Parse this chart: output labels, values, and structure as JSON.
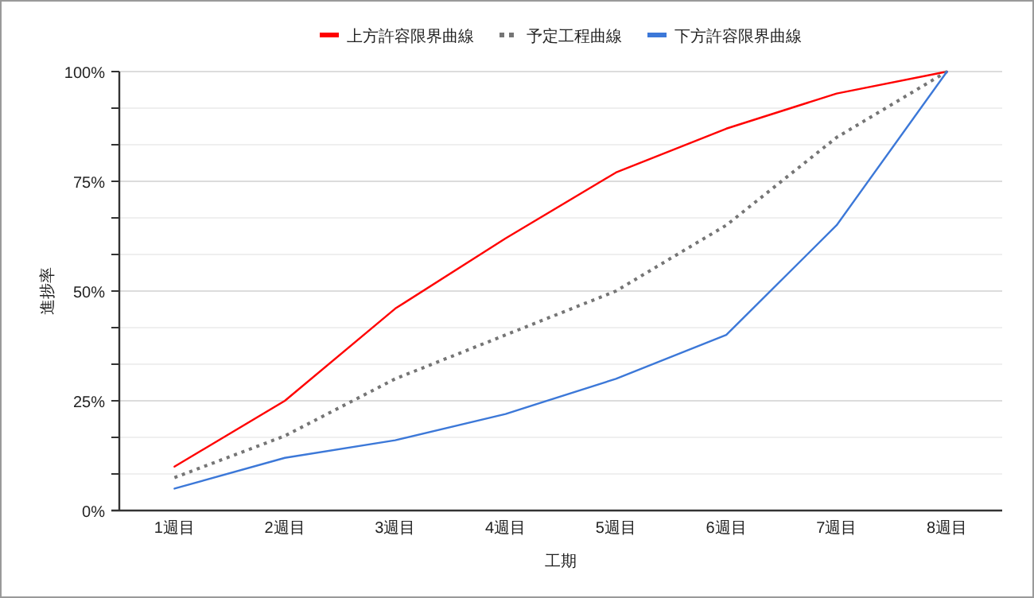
{
  "chart_data": {
    "type": "line",
    "categories": [
      "1週目",
      "2週目",
      "3週目",
      "4週目",
      "5週目",
      "6週目",
      "7週目",
      "8週目"
    ],
    "series": [
      {
        "name": "上方許容限界曲線",
        "color": "#ff0000",
        "line_style": "solid",
        "values": [
          10,
          25,
          46,
          62,
          77,
          87,
          95,
          100
        ]
      },
      {
        "name": "予定工程曲線",
        "color": "#757575",
        "line_style": "dotted",
        "values": [
          7.5,
          17,
          30,
          40,
          50,
          65,
          85,
          100
        ]
      },
      {
        "name": "下方許容限界曲線",
        "color": "#3c78d8",
        "line_style": "solid",
        "values": [
          5,
          12,
          16,
          22,
          30,
          40,
          65,
          100
        ]
      }
    ],
    "xlabel": "工期",
    "ylabel": "進捗率",
    "ylim": [
      0,
      100
    ],
    "yticks": [
      {
        "value": 0,
        "label": "0%"
      },
      {
        "value": 8.333,
        "label": null
      },
      {
        "value": 16.667,
        "label": null
      },
      {
        "value": 25,
        "label": "25%"
      },
      {
        "value": 33.333,
        "label": null
      },
      {
        "value": 41.667,
        "label": null
      },
      {
        "value": 50,
        "label": "50%"
      },
      {
        "value": 58.333,
        "label": null
      },
      {
        "value": 66.667,
        "label": null
      },
      {
        "value": 75,
        "label": "75%"
      },
      {
        "value": 83.333,
        "label": null
      },
      {
        "value": 91.667,
        "label": null
      },
      {
        "value": 100,
        "label": "100%"
      }
    ],
    "grid": "y",
    "legend": "top",
    "marker": "none"
  }
}
